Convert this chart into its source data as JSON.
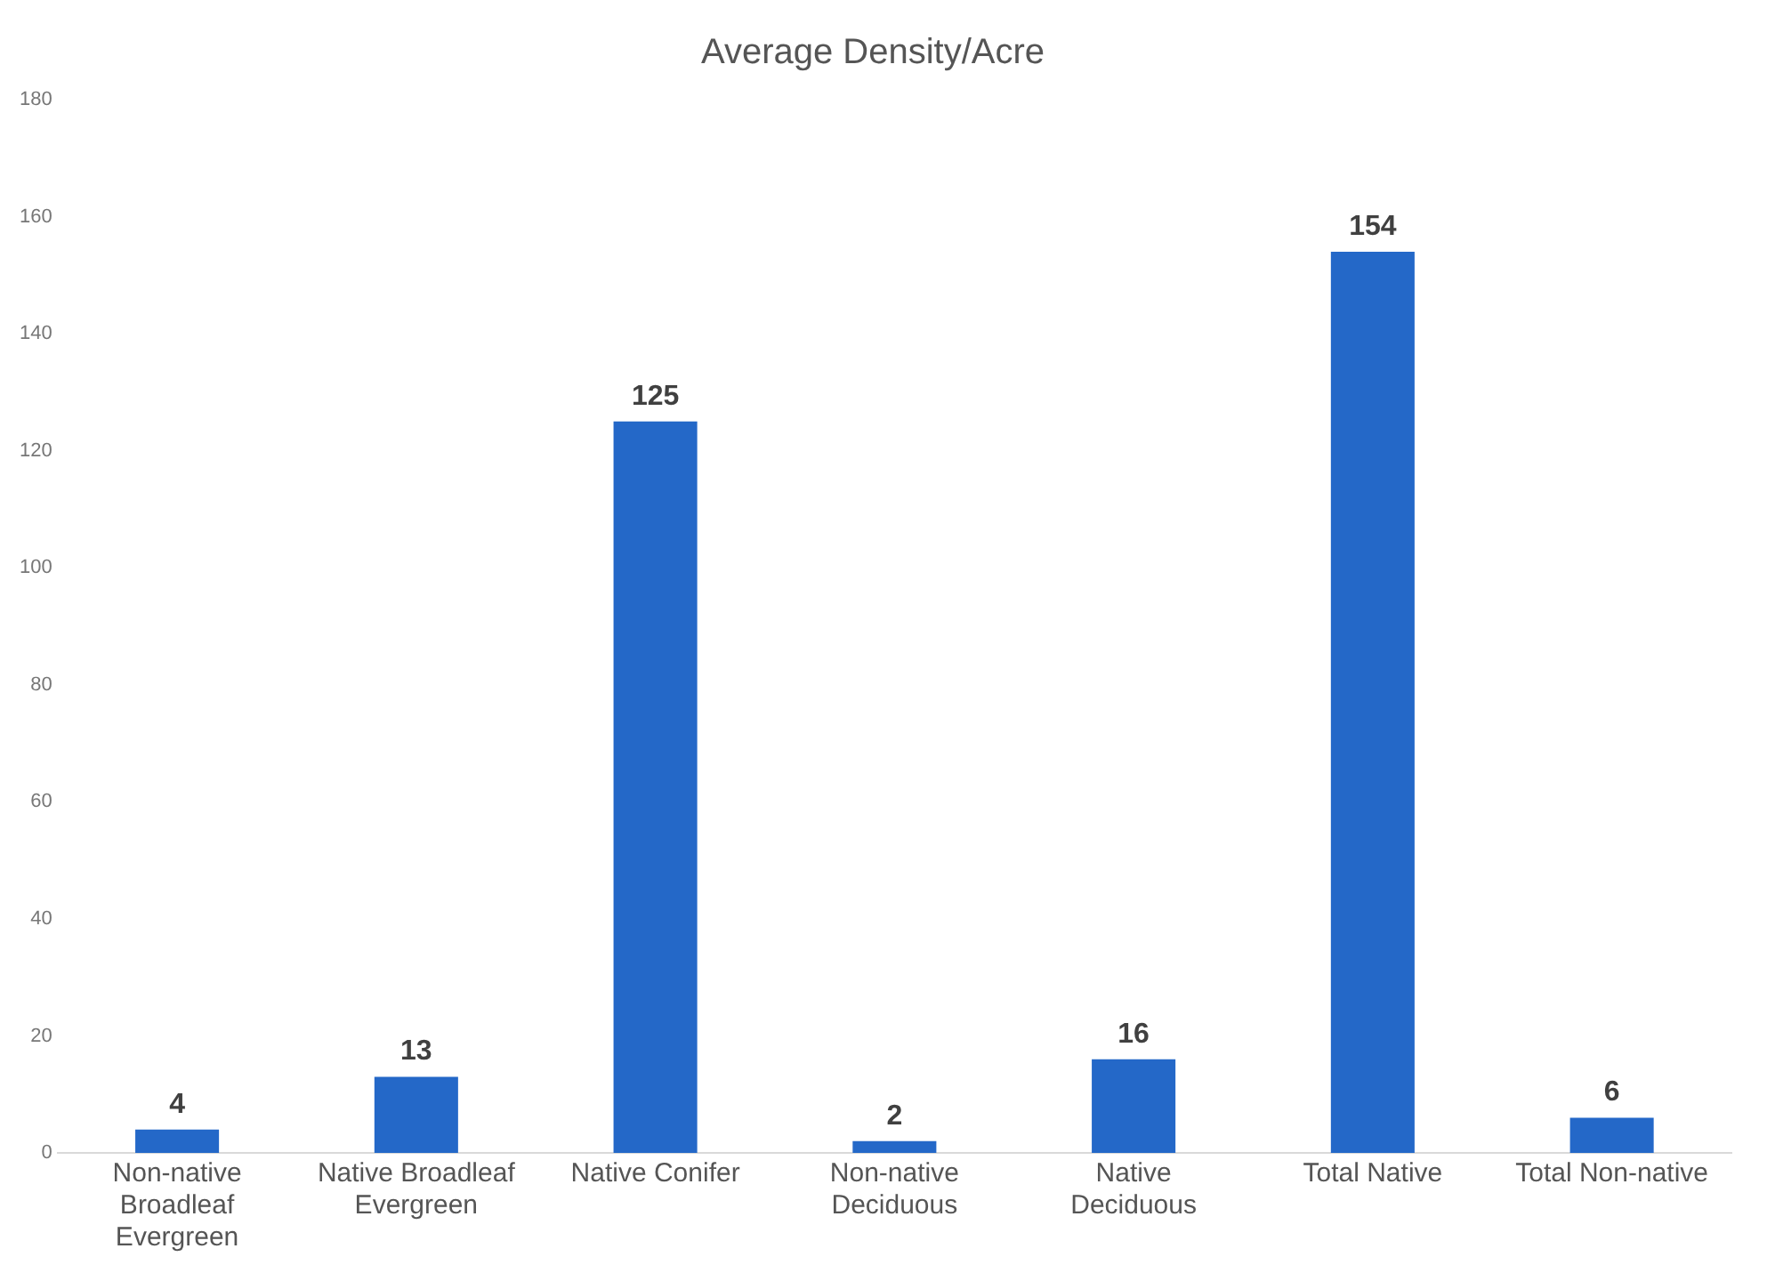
{
  "chart_data": {
    "type": "bar",
    "title": "Average Density/Acre",
    "categories": [
      "Non-native Broadleaf Evergreen",
      "Native Broadleaf Evergreen",
      "Native Conifer",
      "Non-native Deciduous",
      "Native Deciduous",
      "Total Native",
      "Total Non-native"
    ],
    "values": [
      4,
      13,
      125,
      2,
      16,
      154,
      6
    ],
    "color": "#2468c8",
    "ylim": [
      0,
      180
    ],
    "yticks": [
      0,
      20,
      40,
      60,
      80,
      100,
      120,
      140,
      160,
      180
    ],
    "data_labels": true,
    "grid": false,
    "legend": false
  }
}
